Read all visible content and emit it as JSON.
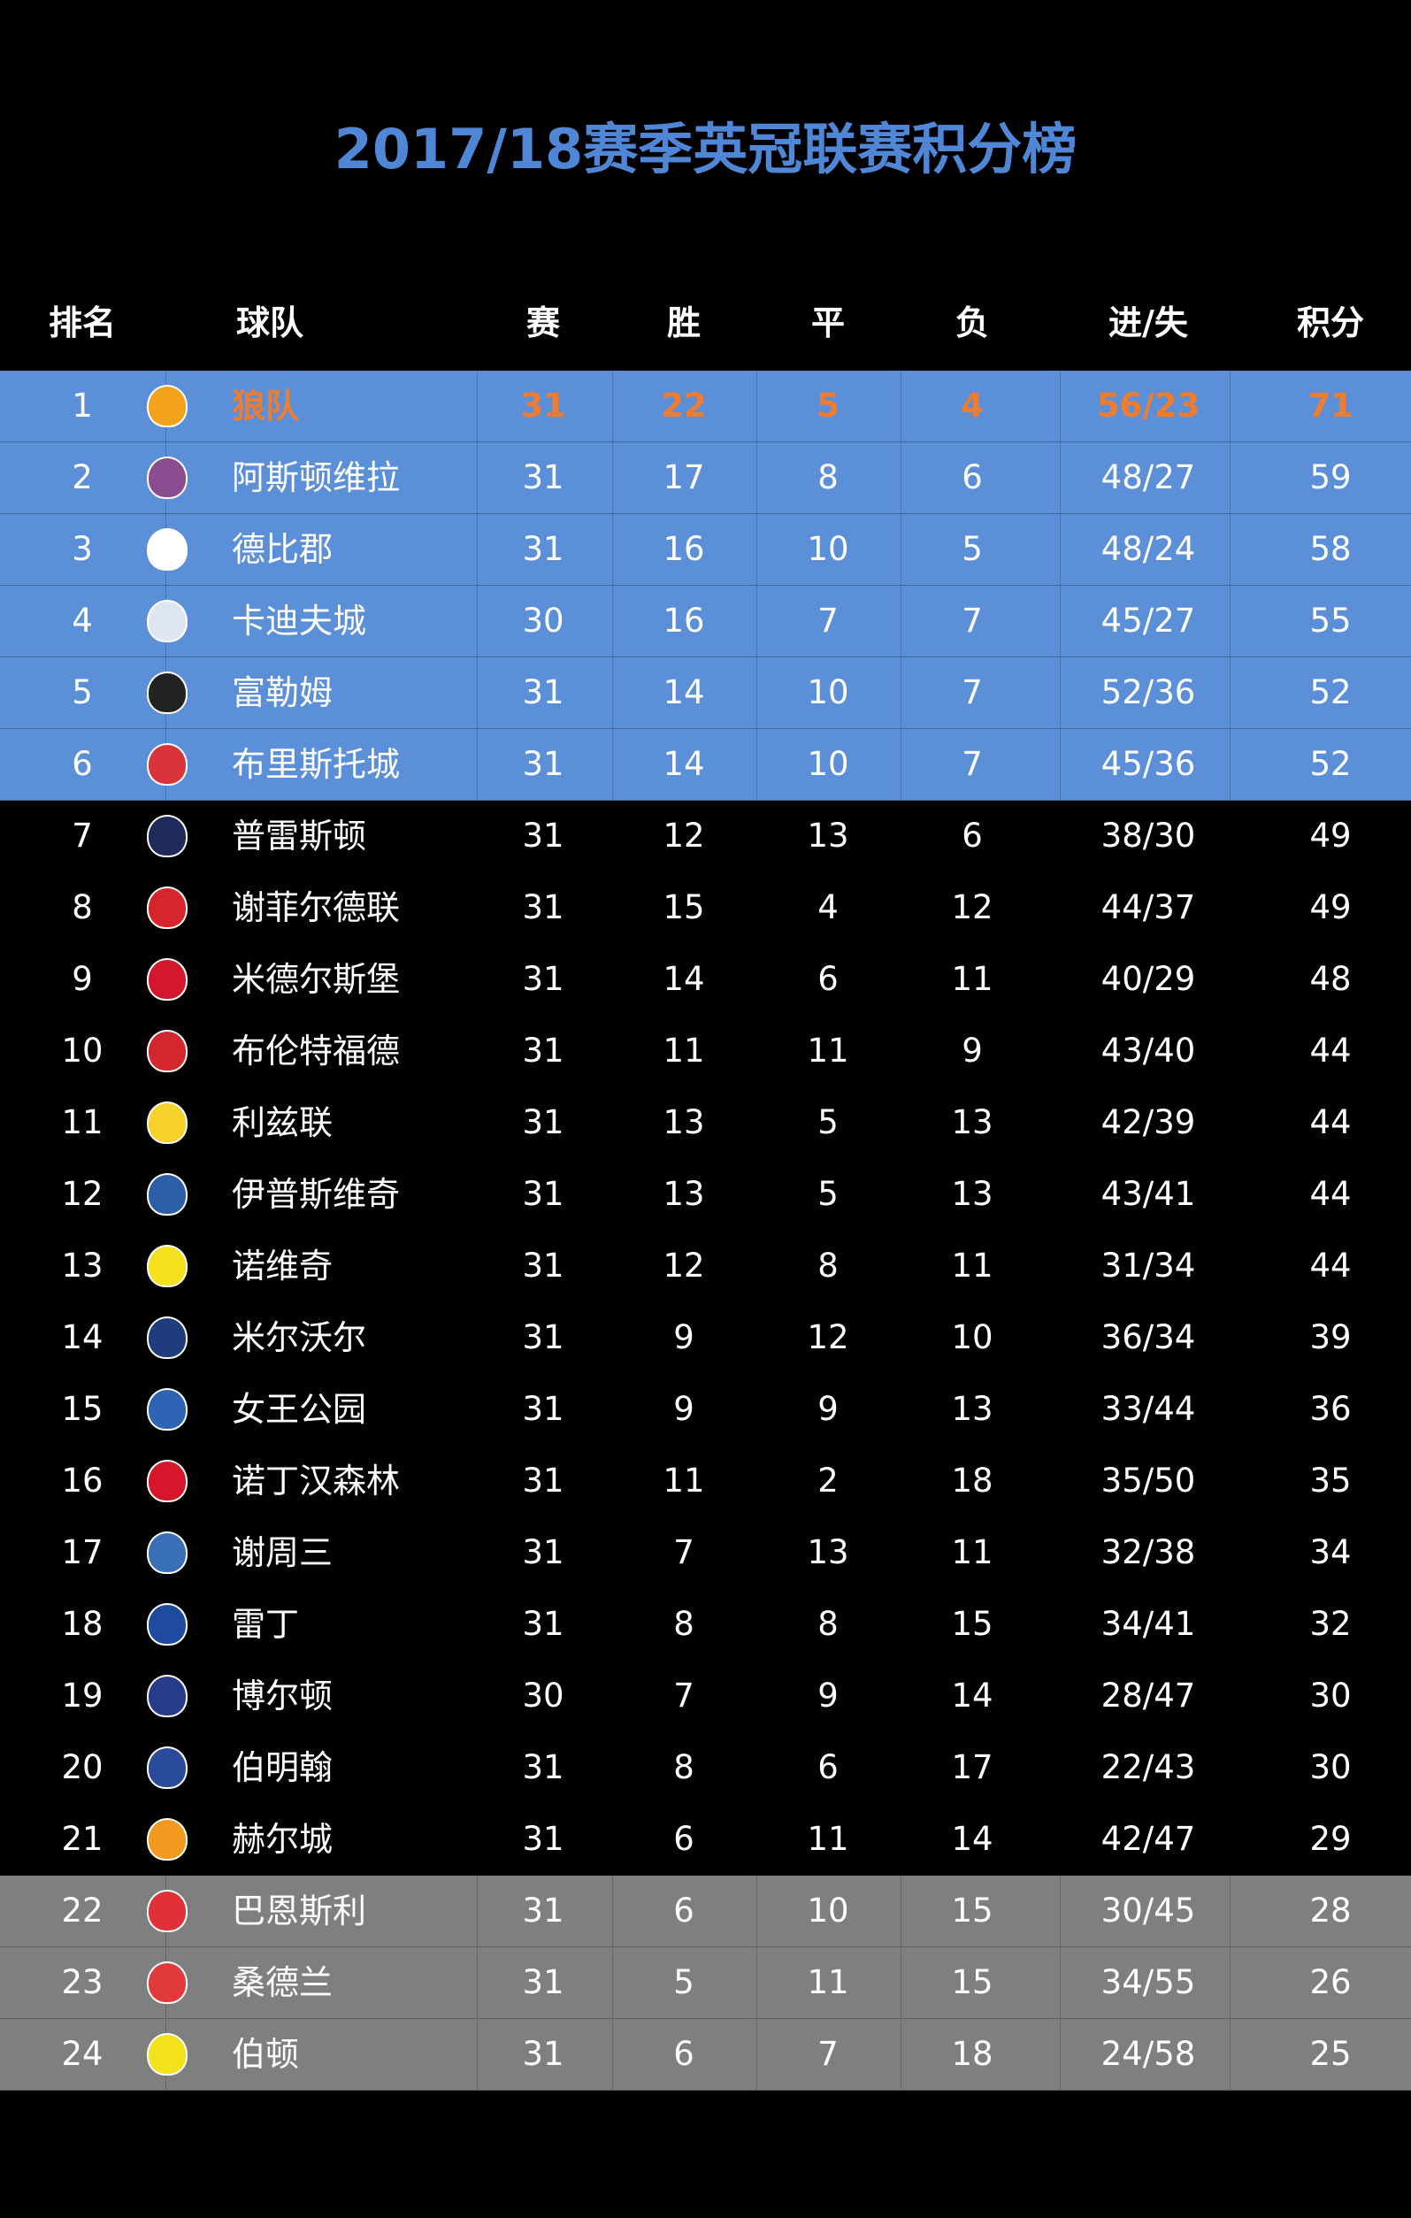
{
  "title": "2017/18赛季英冠联赛积分榜",
  "headers": {
    "rank": "排名",
    "team": "球队",
    "played": "赛",
    "won": "胜",
    "drawn": "平",
    "lost": "负",
    "goals": "进/失",
    "points": "积分"
  },
  "colors": {
    "promotion_bg": "#5b8fd8",
    "relegation_bg": "#7f7f7f",
    "leader_text": "#f07d2f",
    "title": "#4f86d6"
  },
  "rows": [
    {
      "rank": "1",
      "team": "狼队",
      "played": "31",
      "won": "22",
      "drawn": "5",
      "lost": "4",
      "goals": "56/23",
      "points": "71",
      "logo": "wolves-crest",
      "logo_color": "#f3a21b"
    },
    {
      "rank": "2",
      "team": "阿斯顿维拉",
      "played": "31",
      "won": "17",
      "drawn": "8",
      "lost": "6",
      "goals": "48/27",
      "points": "59",
      "logo": "aston-villa-crest",
      "logo_color": "#8a4d8f"
    },
    {
      "rank": "3",
      "team": "德比郡",
      "played": "31",
      "won": "16",
      "drawn": "10",
      "lost": "5",
      "goals": "48/24",
      "points": "58",
      "logo": "derby-crest",
      "logo_color": "#ffffff"
    },
    {
      "rank": "4",
      "team": "卡迪夫城",
      "played": "30",
      "won": "16",
      "drawn": "7",
      "lost": "7",
      "goals": "45/27",
      "points": "55",
      "logo": "cardiff-crest",
      "logo_color": "#dfe6f2"
    },
    {
      "rank": "5",
      "team": "富勒姆",
      "played": "31",
      "won": "14",
      "drawn": "10",
      "lost": "7",
      "goals": "52/36",
      "points": "52",
      "logo": "fulham-crest",
      "logo_color": "#222222"
    },
    {
      "rank": "6",
      "team": "布里斯托城",
      "played": "31",
      "won": "14",
      "drawn": "10",
      "lost": "7",
      "goals": "45/36",
      "points": "52",
      "logo": "bristol-city-crest",
      "logo_color": "#d9333b"
    },
    {
      "rank": "7",
      "team": "普雷斯顿",
      "played": "31",
      "won": "12",
      "drawn": "13",
      "lost": "6",
      "goals": "38/30",
      "points": "49",
      "logo": "preston-crest",
      "logo_color": "#1e2b5a"
    },
    {
      "rank": "8",
      "team": "谢菲尔德联",
      "played": "31",
      "won": "15",
      "drawn": "4",
      "lost": "12",
      "goals": "44/37",
      "points": "49",
      "logo": "sheffield-united-crest",
      "logo_color": "#d7262b"
    },
    {
      "rank": "9",
      "team": "米德尔斯堡",
      "played": "31",
      "won": "14",
      "drawn": "6",
      "lost": "11",
      "goals": "40/29",
      "points": "48",
      "logo": "middlesbrough-crest",
      "logo_color": "#d3172c"
    },
    {
      "rank": "10",
      "team": "布伦特福德",
      "played": "31",
      "won": "11",
      "drawn": "11",
      "lost": "9",
      "goals": "43/40",
      "points": "44",
      "logo": "brentford-crest",
      "logo_color": "#d4262d"
    },
    {
      "rank": "11",
      "team": "利兹联",
      "played": "31",
      "won": "13",
      "drawn": "5",
      "lost": "13",
      "goals": "42/39",
      "points": "44",
      "logo": "leeds-crest",
      "logo_color": "#f7d22a"
    },
    {
      "rank": "12",
      "team": "伊普斯维奇",
      "played": "31",
      "won": "13",
      "drawn": "5",
      "lost": "13",
      "goals": "43/41",
      "points": "44",
      "logo": "ipswich-crest",
      "logo_color": "#2d5fa8"
    },
    {
      "rank": "13",
      "team": "诺维奇",
      "played": "31",
      "won": "12",
      "drawn": "8",
      "lost": "11",
      "goals": "31/34",
      "points": "44",
      "logo": "norwich-crest",
      "logo_color": "#f4e01c"
    },
    {
      "rank": "14",
      "team": "米尔沃尔",
      "played": "31",
      "won": "9",
      "drawn": "12",
      "lost": "10",
      "goals": "36/34",
      "points": "39",
      "logo": "millwall-crest",
      "logo_color": "#1f3d7c"
    },
    {
      "rank": "15",
      "team": "女王公园",
      "played": "31",
      "won": "9",
      "drawn": "9",
      "lost": "13",
      "goals": "33/44",
      "points": "36",
      "logo": "qpr-crest",
      "logo_color": "#2f64b5"
    },
    {
      "rank": "16",
      "team": "诺丁汉森林",
      "played": "31",
      "won": "11",
      "drawn": "2",
      "lost": "18",
      "goals": "35/50",
      "points": "35",
      "logo": "nottingham-forest-crest",
      "logo_color": "#d7152b"
    },
    {
      "rank": "17",
      "team": "谢周三",
      "played": "31",
      "won": "7",
      "drawn": "13",
      "lost": "11",
      "goals": "32/38",
      "points": "34",
      "logo": "sheffield-wednesday-crest",
      "logo_color": "#3a6fb8"
    },
    {
      "rank": "18",
      "team": "雷丁",
      "played": "31",
      "won": "8",
      "drawn": "8",
      "lost": "15",
      "goals": "34/41",
      "points": "32",
      "logo": "reading-crest",
      "logo_color": "#1e4aa0"
    },
    {
      "rank": "19",
      "team": "博尔顿",
      "played": "30",
      "won": "7",
      "drawn": "9",
      "lost": "14",
      "goals": "28/47",
      "points": "30",
      "logo": "bolton-crest",
      "logo_color": "#263b8a"
    },
    {
      "rank": "20",
      "team": "伯明翰",
      "played": "31",
      "won": "8",
      "drawn": "6",
      "lost": "17",
      "goals": "22/43",
      "points": "30",
      "logo": "birmingham-crest",
      "logo_color": "#2a4b9b"
    },
    {
      "rank": "21",
      "team": "赫尔城",
      "played": "31",
      "won": "6",
      "drawn": "11",
      "lost": "14",
      "goals": "42/47",
      "points": "29",
      "logo": "hull-crest",
      "logo_color": "#f29a1e"
    },
    {
      "rank": "22",
      "team": "巴恩斯利",
      "played": "31",
      "won": "6",
      "drawn": "10",
      "lost": "15",
      "goals": "30/45",
      "points": "28",
      "logo": "barnsley-crest",
      "logo_color": "#e0303a"
    },
    {
      "rank": "23",
      "team": "桑德兰",
      "played": "31",
      "won": "5",
      "drawn": "11",
      "lost": "15",
      "goals": "34/55",
      "points": "26",
      "logo": "sunderland-crest",
      "logo_color": "#e23a3a"
    },
    {
      "rank": "24",
      "team": "伯顿",
      "played": "31",
      "won": "6",
      "drawn": "7",
      "lost": "18",
      "goals": "24/58",
      "points": "25",
      "logo": "burton-crest",
      "logo_color": "#f3e11c"
    }
  ]
}
